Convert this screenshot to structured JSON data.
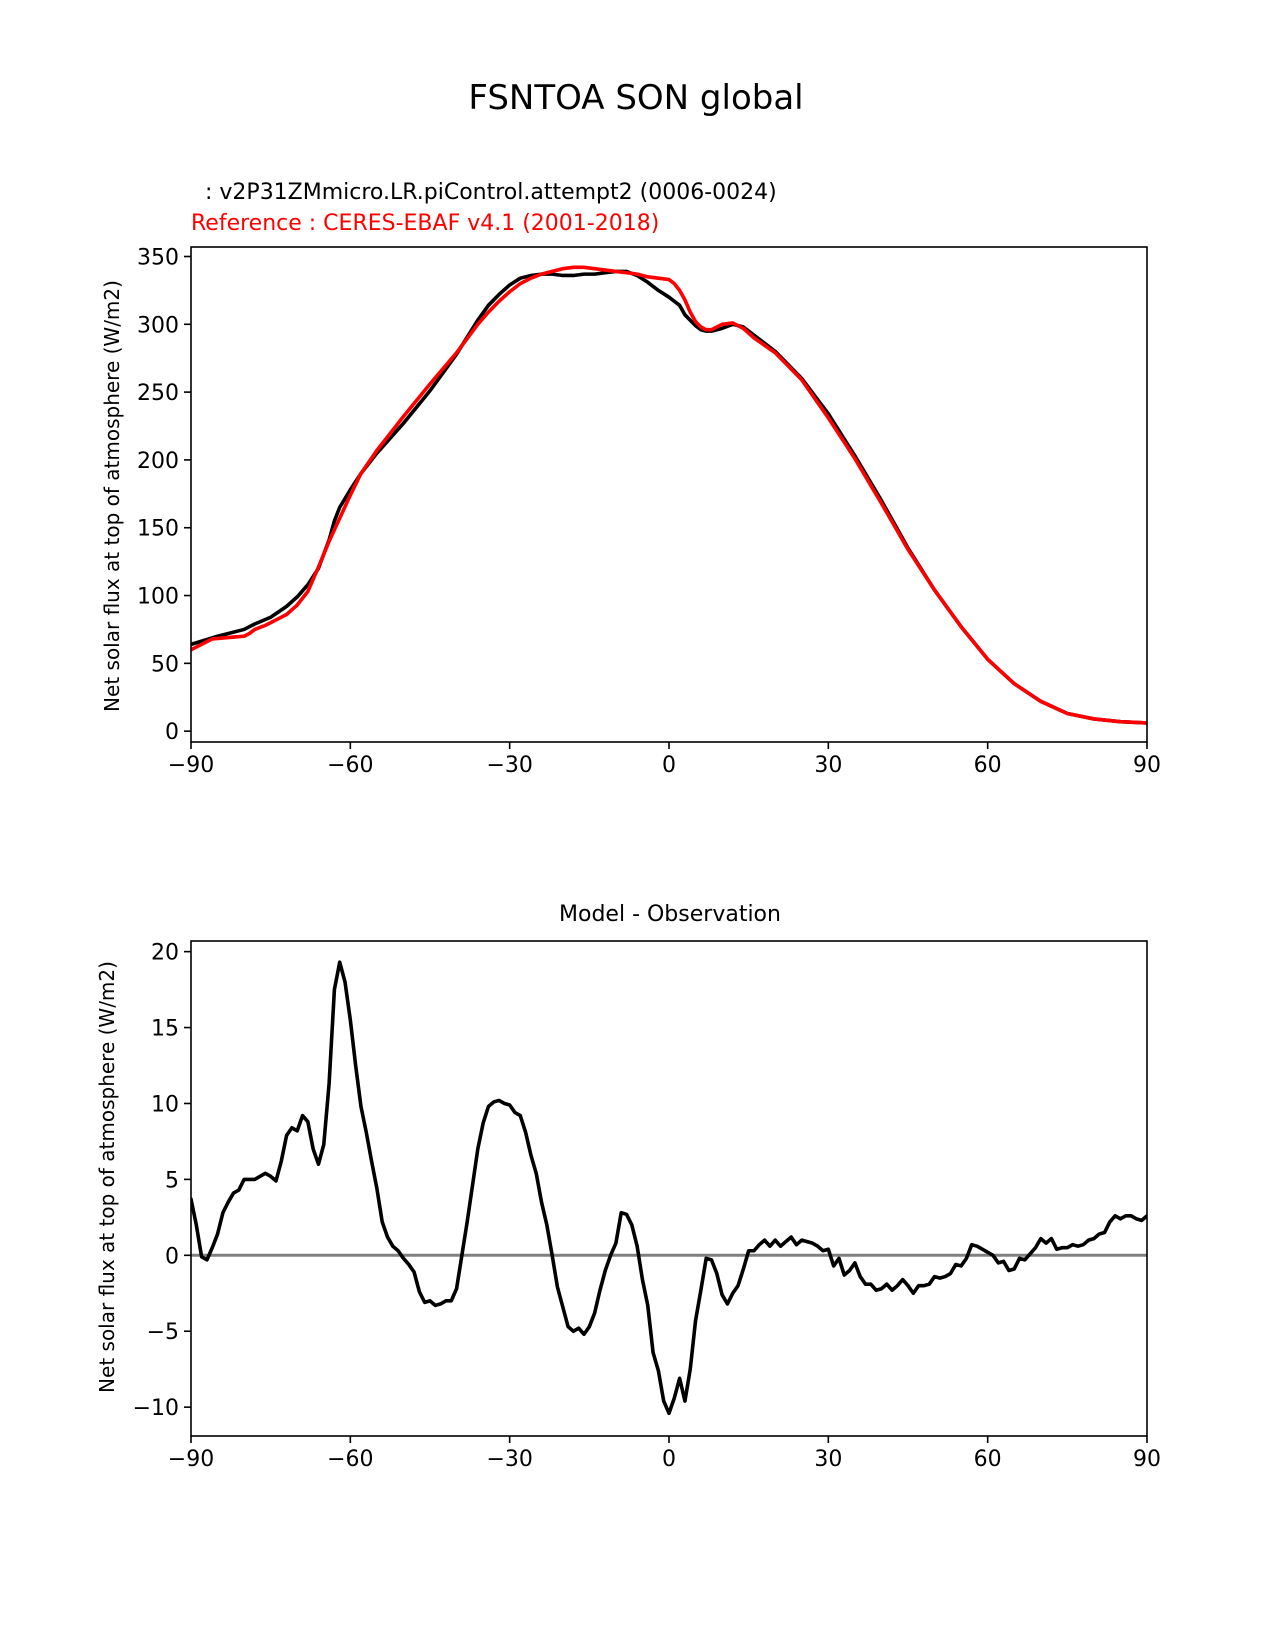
{
  "figure": {
    "title": "FSNTOA SON global"
  },
  "top": {
    "test_label": ": v2P31ZMmicro.LR.piControl.attempt2 (0006-0024)",
    "ref_label": "Reference : CERES-EBAF v4.1 (2001-2018)",
    "ylabel": "Net solar flux at top of atmosphere (W/m2)"
  },
  "bottom": {
    "title": "Model - Observation",
    "ylabel": "Net solar flux at top of atmosphere (W/m2)"
  },
  "colors": {
    "test": "#000000",
    "ref": "#ff0000",
    "zero_line": "#808080"
  },
  "chart_data": [
    {
      "type": "line",
      "title": "FSNTOA SON global",
      "xlabel": "",
      "ylabel": "Net solar flux at top of atmosphere (W/m2)",
      "xlim": [
        -90,
        90
      ],
      "ylim": [
        -8,
        357
      ],
      "xticks": [
        -90,
        -60,
        -30,
        0,
        30,
        60,
        90
      ],
      "xtick_labels": [
        "−90",
        "−60",
        "−30",
        "0",
        "30",
        "60",
        "90"
      ],
      "yticks": [
        0,
        50,
        100,
        150,
        200,
        250,
        300,
        350
      ],
      "ytick_labels": [
        "0",
        "50",
        "100",
        "150",
        "200",
        "250",
        "300",
        "350"
      ],
      "series": [
        {
          "name": "test",
          "color": "#000000",
          "x": [
            -90,
            -85,
            -80,
            -78,
            -75,
            -72,
            -70,
            -68,
            -66,
            -64,
            -63,
            -62,
            -60,
            -58,
            -55,
            -50,
            -45,
            -40,
            -36,
            -34,
            -32,
            -30,
            -28,
            -26,
            -24,
            -22,
            -20,
            -18,
            -16,
            -14,
            -12,
            -10,
            -8,
            -6,
            -4,
            -2,
            0,
            2,
            3,
            4,
            5,
            6,
            7,
            8,
            10,
            12,
            14,
            16,
            20,
            25,
            30,
            35,
            40,
            45,
            50,
            55,
            60,
            65,
            70,
            75,
            80,
            85,
            90
          ],
          "y": [
            64,
            70,
            75,
            79,
            84,
            92,
            99,
            108,
            120,
            141,
            155,
            165,
            178,
            190,
            205,
            227,
            251,
            278,
            303,
            314,
            322,
            329,
            334,
            336,
            337,
            337,
            336,
            336,
            337,
            337,
            338,
            339,
            339,
            336,
            331,
            325,
            320,
            314,
            307,
            303,
            299,
            296,
            295,
            295,
            297,
            300,
            298,
            292,
            280,
            260,
            234,
            203,
            170,
            135,
            104,
            77,
            53,
            35,
            22,
            13,
            9,
            7,
            6
          ]
        },
        {
          "name": "reference",
          "color": "#ff0000",
          "x": [
            -90,
            -86,
            -83,
            -80,
            -79,
            -78,
            -76,
            -74,
            -72,
            -70,
            -68,
            -66,
            -64,
            -62,
            -60,
            -58,
            -55,
            -50,
            -45,
            -40,
            -36,
            -34,
            -32,
            -30,
            -28,
            -26,
            -24,
            -22,
            -20,
            -18,
            -16,
            -14,
            -12,
            -10,
            -8,
            -6,
            -4,
            -2,
            0,
            1,
            2,
            3,
            4,
            5,
            6,
            7,
            8,
            10,
            12,
            14,
            16,
            20,
            25,
            30,
            35,
            40,
            45,
            50,
            55,
            60,
            65,
            70,
            75,
            80,
            85,
            90
          ],
          "y": [
            60,
            68,
            69,
            70,
            72,
            75,
            78,
            82,
            86,
            93,
            103,
            121,
            140,
            157,
            174,
            190,
            207,
            232,
            256,
            279,
            300,
            309,
            317,
            324,
            330,
            334,
            337,
            339,
            341,
            342,
            342,
            341,
            340,
            339,
            338,
            337,
            335,
            334,
            333,
            330,
            325,
            318,
            309,
            302,
            298,
            296,
            296,
            300,
            301,
            297,
            290,
            279,
            259,
            231,
            201,
            168,
            134,
            104,
            77,
            53,
            35,
            22,
            13,
            9,
            7,
            6
          ]
        }
      ]
    },
    {
      "type": "line",
      "title": "Model - Observation",
      "xlabel": "",
      "ylabel": "Net solar flux at top of atmosphere (W/m2)",
      "xlim": [
        -90,
        90
      ],
      "ylim": [
        -11.9,
        20.7
      ],
      "xticks": [
        -90,
        -60,
        -30,
        0,
        30,
        60,
        90
      ],
      "xtick_labels": [
        "−90",
        "−60",
        "−30",
        "0",
        "30",
        "60",
        "90"
      ],
      "yticks": [
        -10,
        -5,
        0,
        5,
        10,
        15,
        20
      ],
      "ytick_labels": [
        "−10",
        "−5",
        "0",
        "5",
        "10",
        "15",
        "20"
      ],
      "hline": 0,
      "series": [
        {
          "name": "difference",
          "color": "#000000",
          "x": [
            -90,
            -89,
            -88,
            -87,
            -86,
            -85,
            -84,
            -83,
            -82,
            -81,
            -80,
            -79,
            -78,
            -77,
            -76,
            -75,
            -74,
            -73,
            -72,
            -71,
            -70,
            -69,
            -68,
            -67,
            -66,
            -65,
            -64,
            -63,
            -62,
            -61,
            -60,
            -59,
            -58,
            -57,
            -56,
            -55,
            -54,
            -53,
            -52,
            -51,
            -50,
            -49,
            -48,
            -47,
            -46,
            -45,
            -44,
            -43,
            -42,
            -41,
            -40,
            -39,
            -38,
            -37,
            -36,
            -35,
            -34,
            -33,
            -32,
            -31,
            -30,
            -29,
            -28,
            -27,
            -26,
            -25,
            -24,
            -23,
            -22,
            -21,
            -20,
            -19,
            -18,
            -17,
            -16,
            -15,
            -14,
            -13,
            -12,
            -11,
            -10,
            -9,
            -8,
            -7,
            -6,
            -5,
            -4,
            -3,
            -2,
            -1,
            0,
            1,
            2,
            3,
            4,
            5,
            6,
            7,
            8,
            9,
            10,
            11,
            12,
            13,
            14,
            15,
            16,
            17,
            18,
            19,
            20,
            21,
            22,
            23,
            24,
            25,
            26,
            27,
            28,
            29,
            30,
            31,
            32,
            33,
            34,
            35,
            36,
            37,
            38,
            39,
            40,
            41,
            42,
            43,
            44,
            45,
            46,
            47,
            48,
            49,
            50,
            51,
            52,
            53,
            54,
            55,
            56,
            57,
            58,
            59,
            60,
            61,
            62,
            63,
            64,
            65,
            66,
            67,
            68,
            69,
            70,
            71,
            72,
            73,
            74,
            75,
            76,
            77,
            78,
            79,
            80,
            81,
            82,
            83,
            84,
            85,
            86,
            87,
            88,
            89,
            90
          ],
          "y": [
            3.7,
            2.0,
            -0.1,
            -0.3,
            0.5,
            1.4,
            2.8,
            3.5,
            4.1,
            4.3,
            5.0,
            5.0,
            5.0,
            5.2,
            5.4,
            5.2,
            4.9,
            6.2,
            7.9,
            8.4,
            8.2,
            9.2,
            8.8,
            7.0,
            6.0,
            7.3,
            11.3,
            17.5,
            19.3,
            18.0,
            15.5,
            12.5,
            9.8,
            8.1,
            6.2,
            4.4,
            2.2,
            1.2,
            0.6,
            0.3,
            -0.2,
            -0.6,
            -1.1,
            -2.4,
            -3.1,
            -3.0,
            -3.3,
            -3.2,
            -3.0,
            -3.0,
            -2.2,
            0.0,
            2.2,
            4.6,
            7.0,
            8.7,
            9.8,
            10.1,
            10.2,
            10.0,
            9.9,
            9.4,
            9.2,
            8.1,
            6.6,
            5.4,
            3.5,
            2.0,
            0.0,
            -2.1,
            -3.4,
            -4.7,
            -5.0,
            -4.8,
            -5.2,
            -4.7,
            -3.8,
            -2.3,
            -1.0,
            0.0,
            0.8,
            2.8,
            2.7,
            2.0,
            0.6,
            -1.6,
            -3.3,
            -6.4,
            -7.6,
            -9.6,
            -10.4,
            -9.4,
            -8.1,
            -9.6,
            -7.5,
            -4.3,
            -2.3,
            -0.2,
            -0.3,
            -1.2,
            -2.6,
            -3.2,
            -2.5,
            -2.0,
            -0.9,
            0.3,
            0.3,
            0.7,
            1.0,
            0.6,
            1.0,
            0.6,
            0.9,
            1.2,
            0.7,
            1.0,
            0.9,
            0.8,
            0.6,
            0.3,
            0.4,
            -0.7,
            -0.2,
            -1.3,
            -1.0,
            -0.5,
            -1.4,
            -1.9,
            -1.9,
            -2.3,
            -2.2,
            -1.9,
            -2.3,
            -2.0,
            -1.6,
            -2.0,
            -2.5,
            -2.0,
            -2.0,
            -1.9,
            -1.4,
            -1.5,
            -1.4,
            -1.2,
            -0.6,
            -0.7,
            -0.2,
            0.7,
            0.6,
            0.4,
            0.2,
            0.0,
            -0.5,
            -0.4,
            -1.0,
            -0.9,
            -0.2,
            -0.3,
            0.1,
            0.5,
            1.1,
            0.8,
            1.1,
            0.4,
            0.5,
            0.5,
            0.7,
            0.6,
            0.7,
            1.0,
            1.1,
            1.4,
            1.5,
            2.2,
            2.6,
            2.4,
            2.6,
            2.6,
            2.4,
            2.3,
            2.6
          ]
        }
      ]
    }
  ]
}
